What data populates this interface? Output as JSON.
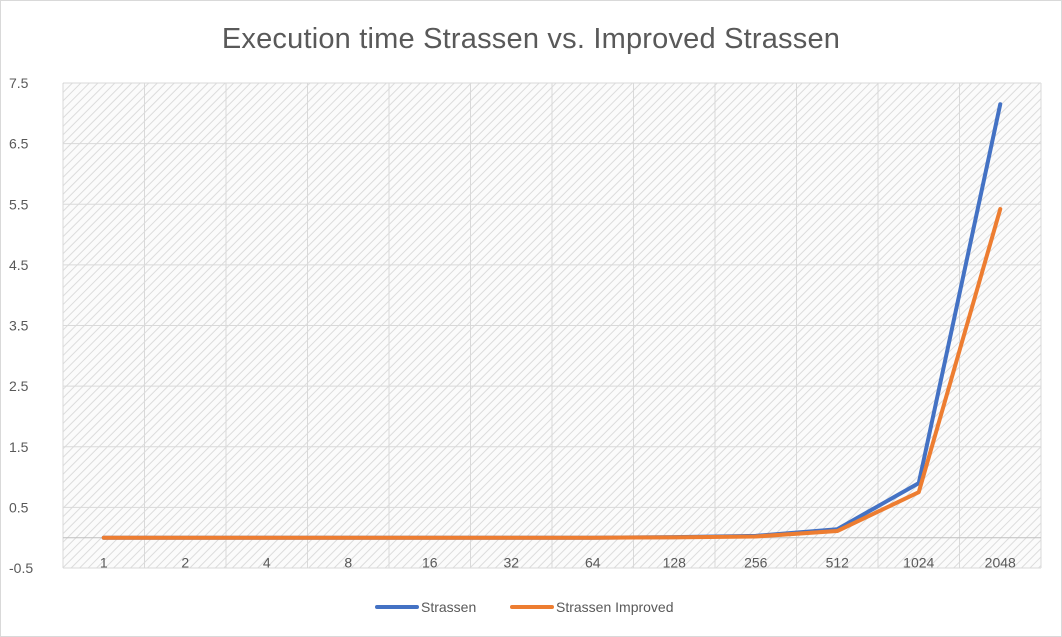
{
  "chart_data": {
    "type": "line",
    "title": "Execution time Strassen vs. Improved Strassen",
    "xlabel": "",
    "ylabel": "",
    "categories": [
      "1",
      "2",
      "4",
      "8",
      "16",
      "32",
      "64",
      "128",
      "256",
      "512",
      "1024",
      "2048"
    ],
    "y_ticks": [
      "7.5",
      "6.5",
      "5.5",
      "4.5",
      "3.5",
      "2.5",
      "1.5",
      "0.5",
      "-0.5"
    ],
    "ylim": [
      -0.5,
      7.5
    ],
    "grid": true,
    "legend_position": "bottom",
    "series": [
      {
        "name": "Strassen",
        "color": "#4472c4",
        "values": [
          0,
          0,
          0,
          0,
          0,
          0,
          0,
          0.01,
          0.03,
          0.14,
          0.9,
          7.15
        ]
      },
      {
        "name": "Strassen Improved",
        "color": "#ed7d31",
        "values": [
          0,
          0,
          0,
          0,
          0,
          0,
          0,
          0.005,
          0.02,
          0.11,
          0.75,
          5.42
        ]
      }
    ]
  }
}
